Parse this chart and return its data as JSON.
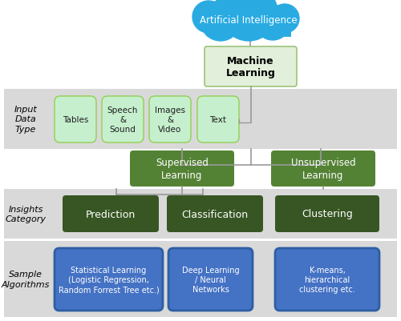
{
  "cloud_color": "#29ABE2",
  "cloud_text": "Artificial Intelligence",
  "ml_box_color": "#E2EFDA",
  "ml_box_text": "Machine\nLearning",
  "ml_box_border": "#9DC47A",
  "input_band_color": "#D9D9D9",
  "input_label": "Input\nData\nType",
  "input_boxes": [
    "Tables",
    "Speech\n&\nSound",
    "Images\n&\nVideo",
    "Text"
  ],
  "input_box_color": "#C6EFCE",
  "input_box_border": "#92D050",
  "supervised_color": "#548235",
  "supervised_text": "Supervised\nLearning",
  "unsupervised_color": "#548235",
  "unsupervised_text": "Unsupervised\nLearning",
  "insights_band_color": "#D9D9D9",
  "insights_label": "Insights\nCategory",
  "prediction_color": "#375623",
  "prediction_text": "Prediction",
  "classification_color": "#375623",
  "classification_text": "Classification",
  "clustering_color": "#375623",
  "clustering_text": "Clustering",
  "algorithms_band_color": "#D9D9D9",
  "algorithms_label": "Sample\nAlgorithms",
  "algo_box_color": "#4472C4",
  "algo_box_border": "#2E5FA3",
  "algo_boxes": [
    "Statistical Learning\n(Logistic Regression,\nRandom Forrest Tree etc.)",
    "Deep Learning\n/ Neural\nNetworks",
    "K-means,\nhierarchical\nclustering etc."
  ],
  "line_color": "#999999",
  "dark_text_color": "#1F1F1F",
  "white": "#FFFFFF",
  "bg_color": "#FFFFFF"
}
